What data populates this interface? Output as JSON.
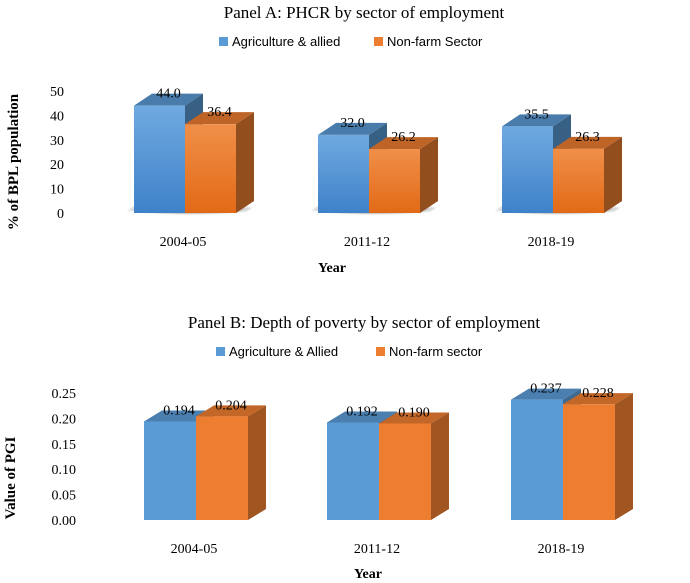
{
  "chart_data": [
    {
      "type": "bar",
      "title": "Panel A: PHCR by sector of employment",
      "xlabel": "Year",
      "ylabel": "% of BPL population",
      "categories": [
        "2004-05",
        "2011-12",
        "2018-19"
      ],
      "series": [
        {
          "name": "Agriculture & allied",
          "values": [
            44.0,
            32.0,
            35.5
          ],
          "labels": [
            "44.0",
            "32.0",
            "35.5"
          ],
          "color": "#5b9bd5"
        },
        {
          "name": "Non-farm Sector",
          "values": [
            36.4,
            26.2,
            26.3
          ],
          "labels": [
            "36.4",
            "26.2",
            "26.3"
          ],
          "color": "#ed7d31"
        }
      ],
      "yticks": [
        "50",
        "40",
        "30",
        "20",
        "10",
        "0"
      ],
      "ylim": [
        0,
        50
      ],
      "grid": false,
      "legend": "top"
    },
    {
      "type": "bar",
      "title": "Panel B: Depth of poverty by sector of employment",
      "xlabel": "Year",
      "ylabel": "Value of PGI",
      "categories": [
        "2004-05",
        "2011-12",
        "2018-19"
      ],
      "series": [
        {
          "name": "Agriculture & Allied",
          "values": [
            0.194,
            0.192,
            0.237
          ],
          "labels": [
            "0.194",
            "0.192",
            "0.237"
          ],
          "color": "#5b9bd5"
        },
        {
          "name": "Non-farm sector",
          "values": [
            0.204,
            0.19,
            0.228
          ],
          "labels": [
            "0.204",
            "0.190",
            "0.228"
          ],
          "color": "#ed7d31"
        }
      ],
      "yticks": [
        "0.25",
        "0.20",
        "0.15",
        "0.10",
        "0.05",
        "0.00"
      ],
      "ylim": [
        0,
        0.25
      ],
      "grid": false,
      "legend": "top"
    }
  ]
}
